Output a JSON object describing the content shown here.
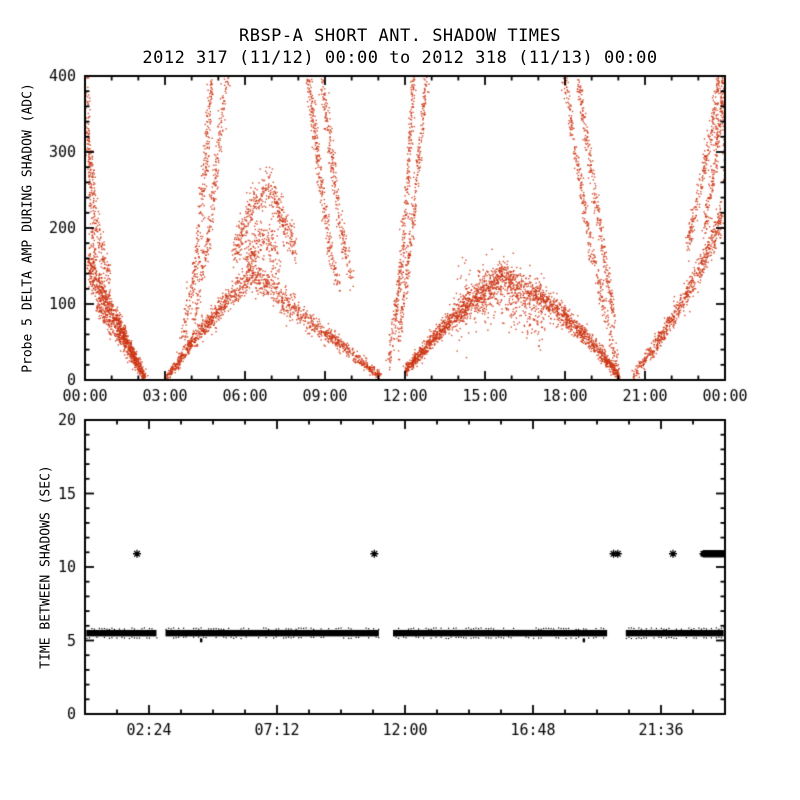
{
  "title": "RBSP-A SHORT ANT. SHADOW TIMES",
  "subtitle": "2012 317 (11/12) 00:00 to 2012 318 (11/13) 00:00",
  "chart_data": [
    {
      "type": "scatter",
      "panel": "top",
      "ylabel": "Probe 5 DELTA AMP DURING SHADOW (ADC)",
      "xlabel": "",
      "xlim": [
        0,
        24
      ],
      "ylim": [
        0,
        400
      ],
      "grid": false,
      "marker": "dot",
      "color": "#cc3311",
      "xticks": {
        "values": [
          0,
          3,
          6,
          9,
          12,
          15,
          18,
          21,
          24
        ],
        "labels": [
          "00:00",
          "03:00",
          "06:00",
          "09:00",
          "12:00",
          "15:00",
          "18:00",
          "21:00",
          "00:00"
        ],
        "minor_step": 1
      },
      "yticks": {
        "values": [
          0,
          100,
          200,
          300,
          400
        ],
        "labels": [
          "0",
          "100",
          "200",
          "300",
          "400"
        ],
        "minor_step": 20
      },
      "description": "Dense red scatter of probe-5 delta amplitude (ADC) during antenna shadows; funnel-shaped envelopes around four shadow event groups. Branches are [hour, ADC] polylines with scatter spread.",
      "branches": [
        {
          "pts": [
            [
              0.05,
              400
            ],
            [
              0.18,
              235
            ],
            [
              0.35,
              150
            ]
          ],
          "spread": 8,
          "xs": 0.04,
          "n": 130
        },
        {
          "pts": [
            [
              0.08,
              320
            ],
            [
              0.5,
              185
            ],
            [
              0.95,
              128
            ]
          ],
          "spread": 12,
          "xs": 0.05,
          "n": 200
        },
        {
          "pts": [
            [
              0.12,
              152
            ],
            [
              0.8,
              103
            ],
            [
              1.5,
              55
            ],
            [
              2.05,
              15
            ],
            [
              2.2,
              4
            ]
          ],
          "spread": 12,
          "xs": 0.05,
          "n": 850,
          "taper": "end"
        },
        {
          "pts": [
            [
              0.45,
              100
            ],
            [
              1.2,
              62
            ],
            [
              1.9,
              26
            ]
          ],
          "spread": 7,
          "xs": 0.05,
          "n": 260
        },
        {
          "pts": [
            [
              3.05,
              4
            ],
            [
              4.0,
              52
            ],
            [
              5.1,
              97
            ],
            [
              6.25,
              142
            ]
          ],
          "spread": 11,
          "xs": 0.04,
          "n": 700,
          "taper": "start"
        },
        {
          "pts": [
            [
              6.3,
              138
            ],
            [
              7.6,
              100
            ],
            [
              9.0,
              62
            ],
            [
              10.3,
              27
            ],
            [
              11.05,
              5
            ]
          ],
          "spread": 10,
          "xs": 0.04,
          "n": 750,
          "taper": "end"
        },
        {
          "pts": [
            [
              3.65,
              55
            ],
            [
              4.15,
              160
            ],
            [
              4.5,
              290
            ],
            [
              4.72,
              400
            ]
          ],
          "spread": 9,
          "xs": 0.06,
          "n": 300
        },
        {
          "pts": [
            [
              4.05,
              70
            ],
            [
              4.6,
              190
            ],
            [
              5.05,
              320
            ],
            [
              5.3,
              400
            ]
          ],
          "spread": 9,
          "xs": 0.06,
          "n": 260
        },
        {
          "pts": [
            [
              5.55,
              165
            ],
            [
              6.2,
              225
            ],
            [
              6.85,
              262
            ],
            [
              7.4,
              212
            ],
            [
              7.85,
              172
            ]
          ],
          "spread": 13,
          "xs": 0.05,
          "n": 430
        },
        {
          "pts": [
            [
              6.0,
              150
            ],
            [
              6.6,
              188
            ],
            [
              7.25,
              158
            ]
          ],
          "spread": 17,
          "xs": 0.05,
          "n": 220
        },
        {
          "pts": [
            [
              8.35,
              400
            ],
            [
              8.75,
              278
            ],
            [
              9.15,
              175
            ],
            [
              9.5,
              122
            ]
          ],
          "spread": 9,
          "xs": 0.06,
          "n": 290
        },
        {
          "pts": [
            [
              8.85,
              400
            ],
            [
              9.25,
              288
            ],
            [
              9.65,
              185
            ],
            [
              10.0,
              132
            ]
          ],
          "spread": 9,
          "xs": 0.06,
          "n": 250
        },
        {
          "pts": [
            [
              11.35,
              20
            ],
            [
              11.75,
              120
            ],
            [
              12.05,
              250
            ],
            [
              12.3,
              400
            ]
          ],
          "spread": 8,
          "xs": 0.05,
          "n": 330
        },
        {
          "pts": [
            [
              11.7,
              40
            ],
            [
              12.15,
              170
            ],
            [
              12.55,
              310
            ],
            [
              12.78,
              400
            ]
          ],
          "spread": 8,
          "xs": 0.05,
          "n": 290
        },
        {
          "pts": [
            [
              11.95,
              12
            ],
            [
              13.2,
              62
            ],
            [
              14.4,
              103
            ],
            [
              15.6,
              138
            ]
          ],
          "spread": 11,
          "xs": 0.04,
          "n": 1000,
          "taper": "start"
        },
        {
          "pts": [
            [
              15.6,
              138
            ],
            [
              16.8,
              116
            ],
            [
              18.0,
              83
            ],
            [
              19.2,
              42
            ],
            [
              20.0,
              6
            ]
          ],
          "spread": 11,
          "xs": 0.04,
          "n": 1050,
          "taper": "end"
        },
        {
          "pts": [
            [
              13.8,
              88
            ],
            [
              15.5,
              116
            ],
            [
              17.2,
              88
            ]
          ],
          "spread": 22,
          "xs": 0.06,
          "n": 380
        },
        {
          "pts": [
            [
              17.95,
              400
            ],
            [
              18.5,
              270
            ],
            [
              19.05,
              160
            ],
            [
              19.6,
              70
            ],
            [
              19.95,
              15
            ]
          ],
          "spread": 8,
          "xs": 0.05,
          "n": 340
        },
        {
          "pts": [
            [
              18.45,
              400
            ],
            [
              18.95,
              280
            ],
            [
              19.45,
              165
            ],
            [
              19.85,
              78
            ]
          ],
          "spread": 8,
          "xs": 0.05,
          "n": 290
        },
        {
          "pts": [
            [
              20.55,
              6
            ],
            [
              21.4,
              48
            ],
            [
              22.3,
              98
            ],
            [
              23.2,
              158
            ],
            [
              23.85,
              212
            ]
          ],
          "spread": 12,
          "xs": 0.04,
          "n": 650,
          "taper": "start"
        },
        {
          "pts": [
            [
              22.55,
              175
            ],
            [
              23.05,
              255
            ],
            [
              23.5,
              335
            ],
            [
              23.75,
              400
            ]
          ],
          "spread": 9,
          "xs": 0.05,
          "n": 240
        },
        {
          "pts": [
            [
              23.2,
              195
            ],
            [
              23.6,
              285
            ],
            [
              23.92,
              385
            ]
          ],
          "spread": 9,
          "xs": 0.05,
          "n": 200
        },
        {
          "pts": [
            [
              23.9,
              400
            ],
            [
              23.97,
              255
            ]
          ],
          "spread": 6,
          "xs": 0.03,
          "n": 80
        }
      ]
    },
    {
      "type": "scatter",
      "panel": "bottom",
      "ylabel": "TIME BETWEEN SHADOWS (SEC)",
      "xlabel": "",
      "xlim": [
        0,
        24
      ],
      "ylim": [
        0,
        20
      ],
      "grid": false,
      "marker": "asterisk",
      "color": "#000000",
      "xticks": {
        "values": [
          2.4,
          7.2,
          12,
          16.8,
          21.6
        ],
        "labels": [
          "02:24",
          "07:12",
          "12:00",
          "16:48",
          "21:36"
        ],
        "minor_step": 1.2
      },
      "yticks": {
        "values": [
          0,
          5,
          10,
          15,
          20
        ],
        "labels": [
          "0",
          "5",
          "10",
          "15",
          "20"
        ],
        "minor_step": 1
      },
      "description": "Time between successive shadows: thick black band at ~5.5 s across nearly the whole day with gaps at shadow-group boundaries; isolated asterisks at ~10.9 s.",
      "band_y": 5.5,
      "band_halfwidth_sec": 0.22,
      "band_segments_hours": [
        [
          0.05,
          2.68
        ],
        [
          3.02,
          11.02
        ],
        [
          11.55,
          19.58
        ],
        [
          20.28,
          23.95
        ]
      ],
      "star_y": 10.9,
      "star_points_hours": [
        1.95,
        10.85,
        19.82,
        19.98,
        22.05
      ],
      "star_run_hours": [
        [
          23.18,
          23.95
        ]
      ],
      "dip_points": [
        [
          4.35,
          5.15
        ],
        [
          18.7,
          5.15
        ]
      ]
    }
  ]
}
